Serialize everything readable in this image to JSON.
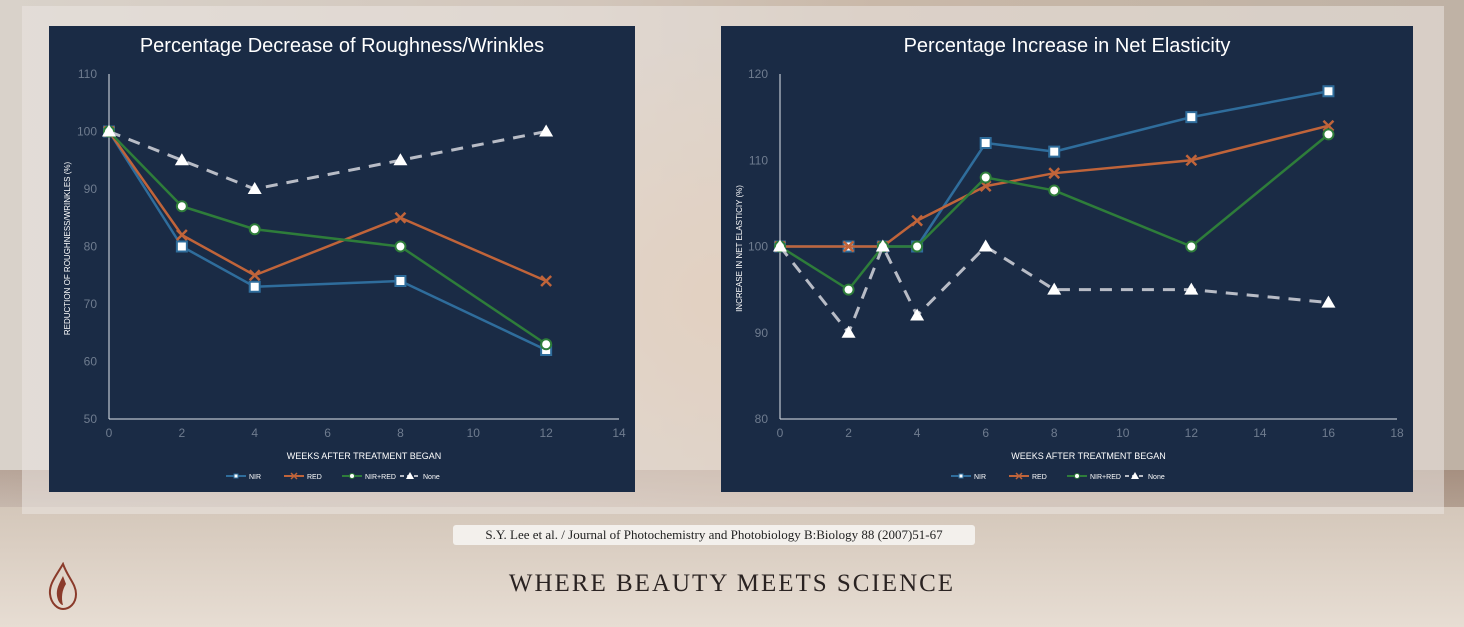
{
  "citation": "S.Y. Lee et al. / Journal of Photochemistry and Photobiology B:Biology 88 (2007)51-67",
  "tagline": "WHERE BEAUTY MEETS SCIENCE",
  "colors": {
    "panel_bg": "#1a2b45",
    "NIR": "#2f6d9c",
    "RED": "#c0643a",
    "NIR+RED": "#2e7d3a",
    "None": "#b8bcc6"
  },
  "icons": {
    "logo": "flame-drop-logo-icon"
  },
  "chart_data": [
    {
      "type": "line",
      "title": "Percentage Decrease of Roughness/Wrinkles",
      "xlabel": "WEEKS AFTER TREATMENT BEGAN",
      "ylabel": "REDUCTION OF ROUGHNESS/WRINKLES (%)",
      "xlim": [
        0,
        14
      ],
      "ylim": [
        50,
        110
      ],
      "xticks": [
        0,
        2,
        4,
        6,
        8,
        10,
        12,
        14
      ],
      "yticks": [
        50,
        60,
        70,
        80,
        90,
        100,
        110
      ],
      "grid": false,
      "legend_position": "bottom",
      "series": [
        {
          "name": "NIR",
          "marker": "square",
          "dashed": false,
          "points": [
            [
              0,
              100
            ],
            [
              2,
              80
            ],
            [
              4,
              73
            ],
            [
              8,
              74
            ],
            [
              12,
              62
            ]
          ]
        },
        {
          "name": "RED",
          "marker": "x",
          "dashed": false,
          "points": [
            [
              0,
              100
            ],
            [
              2,
              82
            ],
            [
              4,
              75
            ],
            [
              8,
              85
            ],
            [
              12,
              74
            ]
          ]
        },
        {
          "name": "NIR+RED",
          "marker": "circle",
          "dashed": false,
          "points": [
            [
              0,
              100
            ],
            [
              2,
              87
            ],
            [
              4,
              83
            ],
            [
              8,
              80
            ],
            [
              12,
              63
            ]
          ]
        },
        {
          "name": "None",
          "marker": "triangle",
          "dashed": true,
          "points": [
            [
              0,
              100
            ],
            [
              2,
              95
            ],
            [
              4,
              90
            ],
            [
              8,
              95
            ],
            [
              12,
              100
            ]
          ]
        }
      ]
    },
    {
      "type": "line",
      "title": "Percentage Increase in Net Elasticity",
      "xlabel": "WEEKS AFTER TREATMENT BEGAN",
      "ylabel": "INCREASE IN NET ELASTICIY (%)",
      "xlim": [
        0,
        18
      ],
      "ylim": [
        80,
        120
      ],
      "xticks": [
        0,
        2,
        4,
        6,
        8,
        10,
        12,
        14,
        16,
        18
      ],
      "yticks": [
        80,
        90,
        100,
        110,
        120
      ],
      "grid": false,
      "legend_position": "bottom",
      "series": [
        {
          "name": "NIR",
          "marker": "square",
          "dashed": false,
          "points": [
            [
              0,
              100
            ],
            [
              2,
              100
            ],
            [
              3,
              100
            ],
            [
              4,
              100
            ],
            [
              6,
              112
            ],
            [
              8,
              111
            ],
            [
              12,
              115
            ],
            [
              16,
              118
            ]
          ]
        },
        {
          "name": "RED",
          "marker": "x",
          "dashed": false,
          "points": [
            [
              0,
              100
            ],
            [
              2,
              100
            ],
            [
              3,
              100
            ],
            [
              4,
              103
            ],
            [
              6,
              107
            ],
            [
              8,
              108.5
            ],
            [
              12,
              110
            ],
            [
              16,
              114
            ]
          ]
        },
        {
          "name": "NIR+RED",
          "marker": "circle",
          "dashed": false,
          "points": [
            [
              0,
              100
            ],
            [
              2,
              95
            ],
            [
              3,
              100
            ],
            [
              4,
              100
            ],
            [
              6,
              108
            ],
            [
              8,
              106.5
            ],
            [
              12,
              100
            ],
            [
              16,
              113
            ]
          ]
        },
        {
          "name": "None",
          "marker": "triangle",
          "dashed": true,
          "points": [
            [
              0,
              100
            ],
            [
              2,
              90
            ],
            [
              3,
              100
            ],
            [
              4,
              92
            ],
            [
              6,
              100
            ],
            [
              8,
              95
            ],
            [
              12,
              95
            ],
            [
              16,
              93.5
            ]
          ]
        }
      ]
    }
  ]
}
